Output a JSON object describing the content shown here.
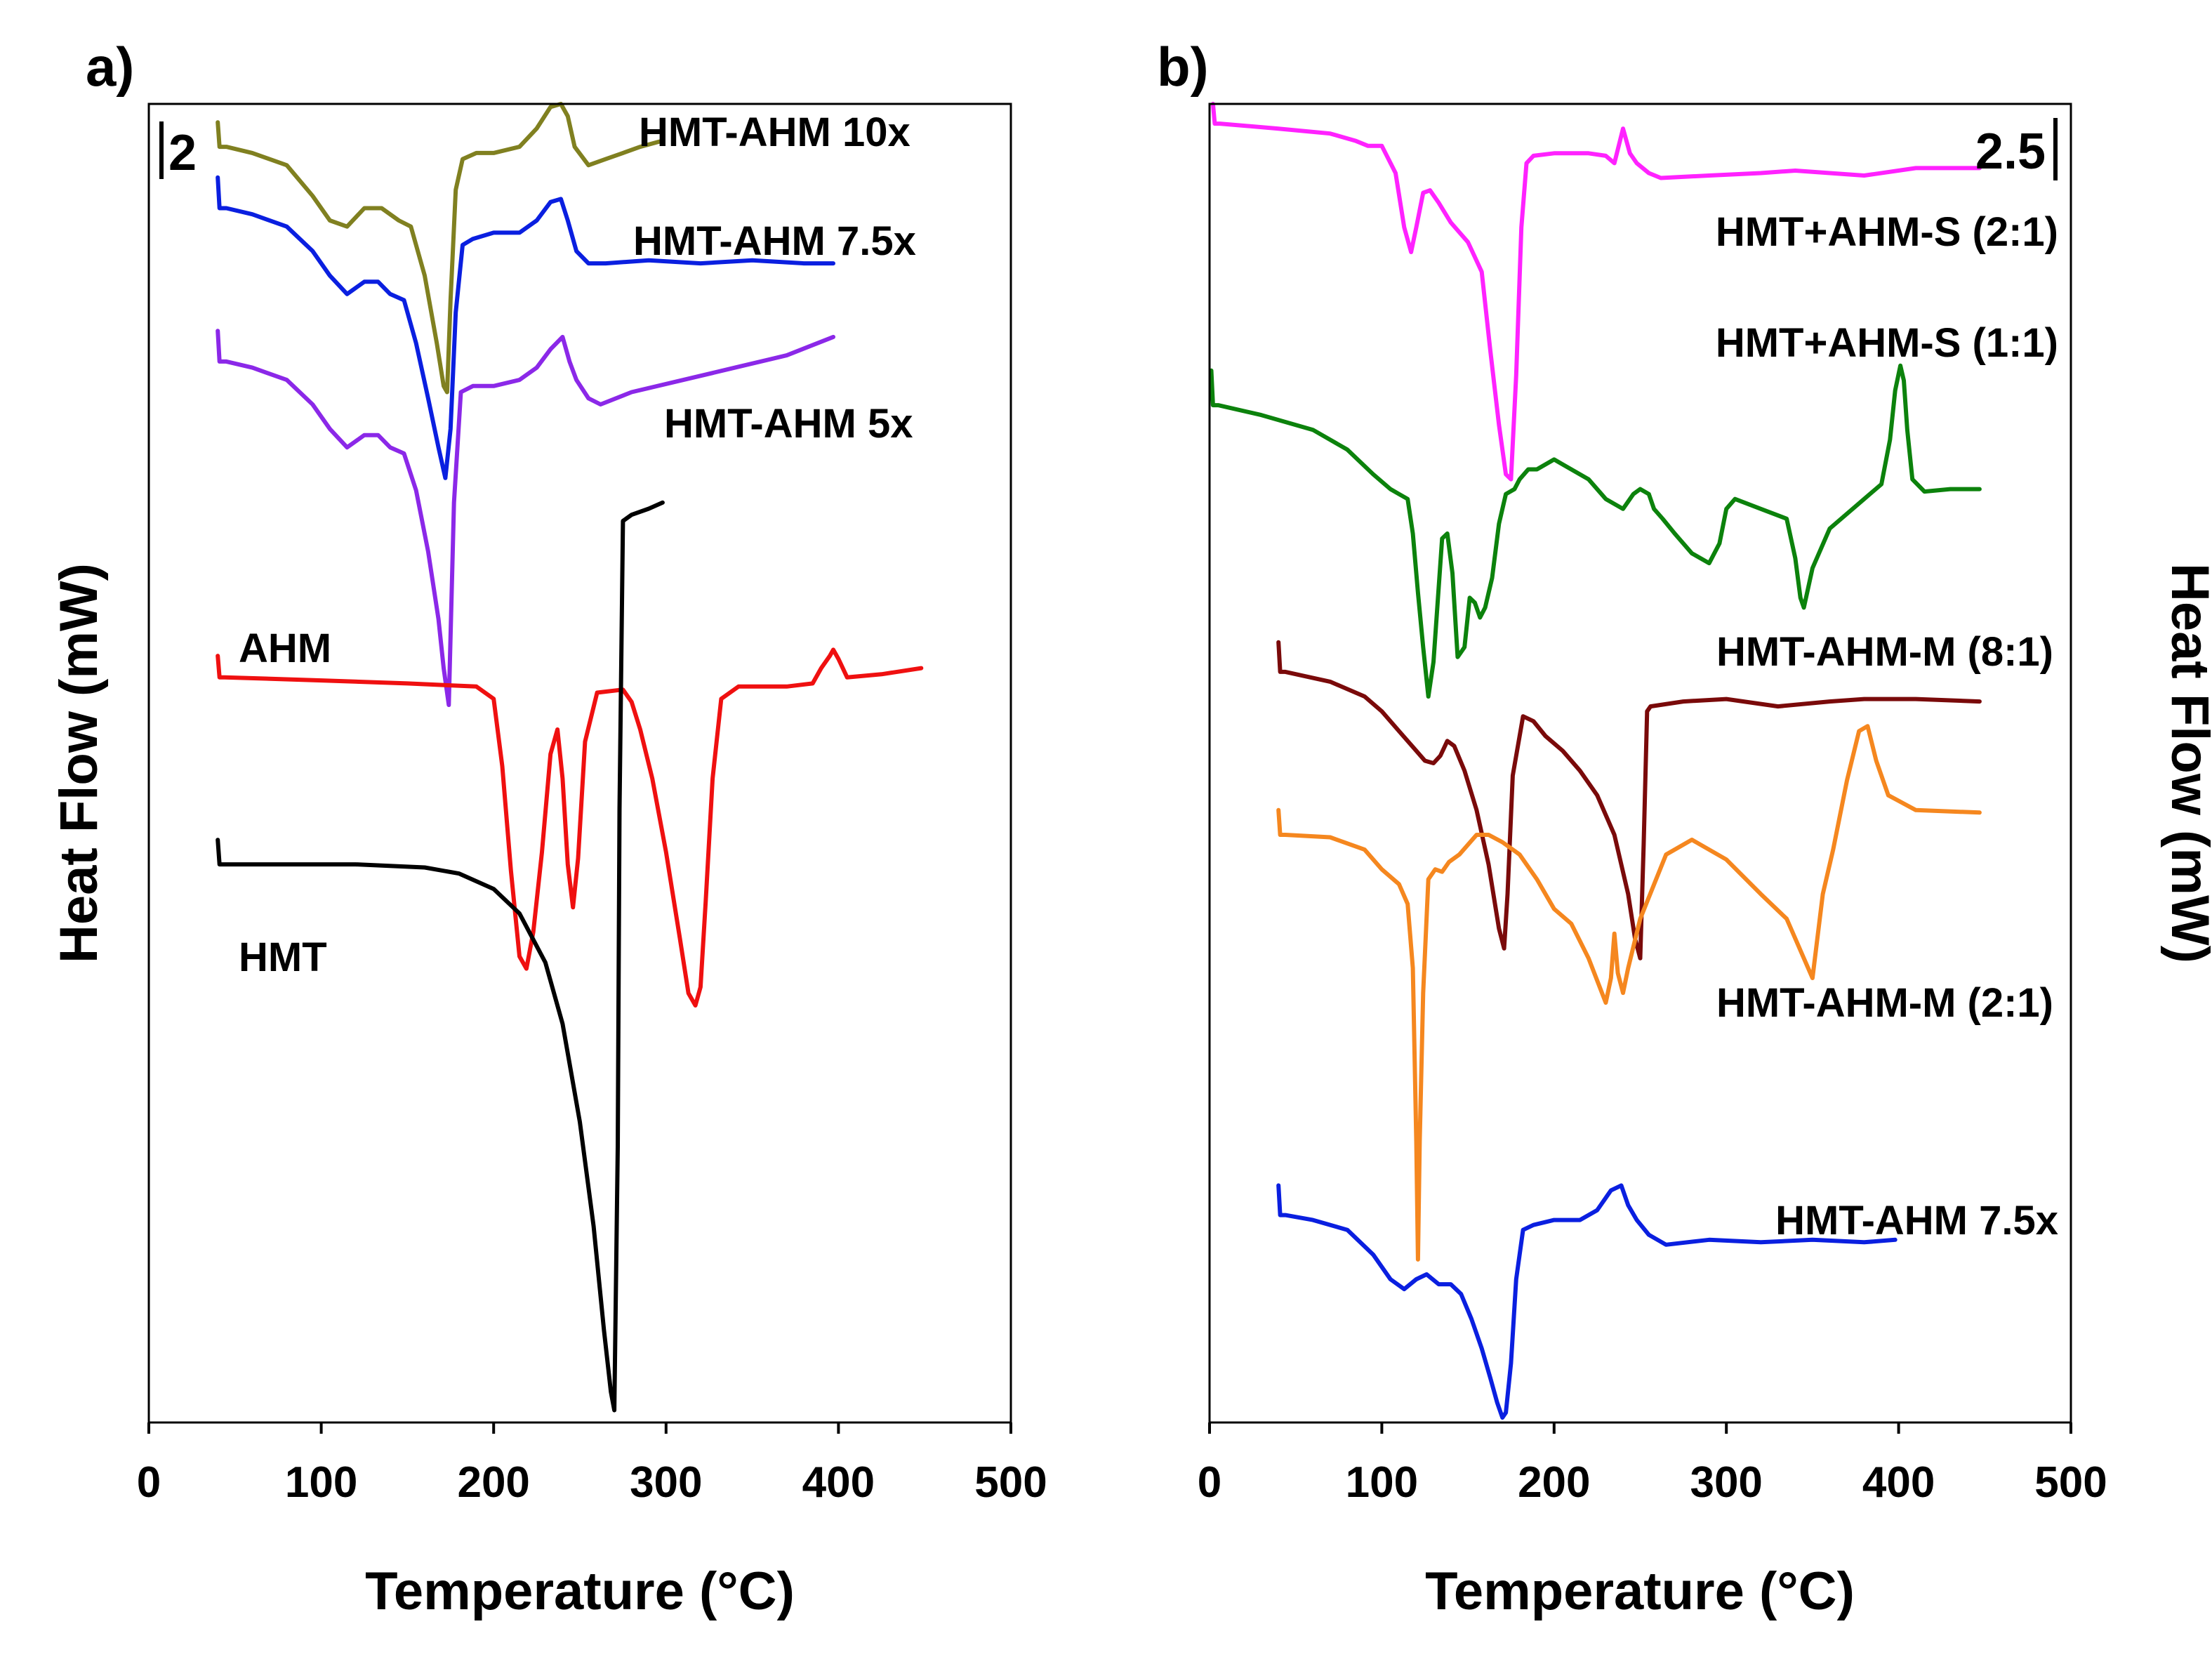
{
  "chart_data": [
    {
      "id": "a",
      "type": "line",
      "panel_label": "a)",
      "title": "",
      "xlabel": "Temperature (°C)",
      "ylabel": "Heat Flow (mW)",
      "xlim": [
        0,
        500
      ],
      "xticks": [
        0,
        100,
        200,
        300,
        400,
        500
      ],
      "ylim": [
        -21.5,
        0
      ],
      "y_units": "arbitrary stacked offset (mW)",
      "scale_bar": {
        "label": "2",
        "value": 2
      },
      "grid": false,
      "legend": "none (labels next to curves)",
      "series": [
        {
          "name": "HMT-AHM 10x",
          "color": "#808020",
          "x": [
            40,
            41,
            45,
            60,
            80,
            95,
            105,
            115,
            125,
            135,
            145,
            152,
            160,
            167,
            171,
            173,
            175,
            178,
            182,
            190,
            200,
            215,
            225,
            233,
            239,
            243,
            247,
            255,
            265,
            275,
            285,
            298
          ],
          "y": [
            -0.3,
            -0.7,
            -0.7,
            -0.8,
            -1.0,
            -1.5,
            -1.9,
            -2.0,
            -1.7,
            -1.7,
            -1.9,
            -2.0,
            -2.8,
            -3.9,
            -4.6,
            -4.7,
            -3.2,
            -1.4,
            -0.9,
            -0.8,
            -0.8,
            -0.7,
            -0.4,
            -0.05,
            0.0,
            -0.2,
            -0.7,
            -1.0,
            -0.9,
            -0.8,
            -0.7,
            -0.6
          ]
        },
        {
          "name": "HMT-AHM 7.5x",
          "color": "#0a1fe0",
          "x": [
            40,
            41,
            45,
            60,
            80,
            95,
            105,
            115,
            125,
            133,
            140,
            148,
            155,
            162,
            168,
            172,
            175,
            178,
            182,
            188,
            200,
            215,
            225,
            233,
            239,
            243,
            248,
            255,
            265,
            290,
            320,
            350,
            380,
            397
          ],
          "y": [
            -1.2,
            -1.7,
            -1.7,
            -1.8,
            -2.0,
            -2.4,
            -2.8,
            -3.1,
            -2.9,
            -2.9,
            -3.1,
            -3.2,
            -3.9,
            -4.8,
            -5.6,
            -6.1,
            -5.3,
            -3.4,
            -2.3,
            -2.2,
            -2.1,
            -2.1,
            -1.9,
            -1.6,
            -1.55,
            -1.9,
            -2.4,
            -2.6,
            -2.6,
            -2.55,
            -2.6,
            -2.55,
            -2.6,
            -2.6
          ]
        },
        {
          "name": "HMT-AHM 5x",
          "color": "#8b28e8",
          "x": [
            40,
            41,
            45,
            60,
            80,
            95,
            105,
            115,
            125,
            133,
            140,
            148,
            155,
            162,
            168,
            171,
            174,
            177,
            181,
            188,
            200,
            215,
            225,
            233,
            240,
            244,
            248,
            255,
            262,
            280,
            310,
            340,
            370,
            397
          ],
          "y": [
            -3.7,
            -4.2,
            -4.2,
            -4.3,
            -4.5,
            -4.9,
            -5.3,
            -5.6,
            -5.4,
            -5.4,
            -5.6,
            -5.7,
            -6.3,
            -7.3,
            -8.4,
            -9.2,
            -9.8,
            -6.5,
            -4.7,
            -4.6,
            -4.6,
            -4.5,
            -4.3,
            -4.0,
            -3.8,
            -4.2,
            -4.5,
            -4.8,
            -4.9,
            -4.7,
            -4.5,
            -4.3,
            -4.1,
            -3.8
          ]
        },
        {
          "name": "AHM",
          "color": "#ef1010",
          "x": [
            40,
            41,
            44,
            100,
            150,
            190,
            200,
            205,
            210,
            215,
            219,
            223,
            228,
            233,
            237,
            240,
            243,
            246,
            249,
            253,
            260,
            275,
            280,
            285,
            292,
            300,
            308,
            313,
            317,
            320,
            323,
            327,
            332,
            342,
            370,
            385,
            390,
            395,
            397,
            400,
            405,
            425,
            448
          ],
          "y": [
            -9.0,
            -9.35,
            -9.35,
            -9.4,
            -9.45,
            -9.5,
            -9.7,
            -10.8,
            -12.5,
            -13.9,
            -14.1,
            -13.5,
            -12.2,
            -10.6,
            -10.2,
            -11.0,
            -12.4,
            -13.1,
            -12.3,
            -10.4,
            -9.6,
            -9.55,
            -9.75,
            -10.2,
            -11.0,
            -12.2,
            -13.6,
            -14.5,
            -14.7,
            -14.4,
            -13.0,
            -11.0,
            -9.7,
            -9.5,
            -9.5,
            -9.45,
            -9.2,
            -9.0,
            -8.9,
            -9.05,
            -9.35,
            -9.3,
            -9.2
          ]
        },
        {
          "name": "HMT",
          "color": "#000000",
          "x": [
            40,
            41,
            44,
            80,
            120,
            160,
            180,
            200,
            215,
            230,
            240,
            250,
            258,
            264,
            268,
            270,
            272,
            273,
            275,
            280,
            290,
            298
          ],
          "y": [
            -12.0,
            -12.4,
            -12.4,
            -12.4,
            -12.4,
            -12.45,
            -12.55,
            -12.8,
            -13.2,
            -14.0,
            -15.0,
            -16.6,
            -18.3,
            -20.0,
            -21.0,
            -21.3,
            -17.0,
            -11.5,
            -6.8,
            -6.7,
            -6.6,
            -6.5
          ]
        }
      ]
    },
    {
      "id": "b",
      "type": "line",
      "panel_label": "b)",
      "title": "",
      "xlabel": "Temperature (°C)",
      "ylabel": "Heat Flow (mW)",
      "xlim": [
        0,
        500
      ],
      "xticks": [
        0,
        100,
        200,
        300,
        400,
        500
      ],
      "ylim": [
        -26.7,
        0
      ],
      "y_units": "arbitrary stacked offset (mW)",
      "scale_bar": {
        "label": "2.5",
        "value": 2.5
      },
      "grid": false,
      "legend": "none (labels next to curves)",
      "series": [
        {
          "name": "HMT+AHM-S (2:1)",
          "color": "#ff22ff",
          "x": [
            2,
            3,
            6,
            40,
            70,
            85,
            92,
            100,
            108,
            113,
            117,
            120,
            124,
            128,
            133,
            140,
            150,
            158,
            163,
            168,
            172,
            175,
            178,
            181,
            184,
            188,
            200,
            220,
            230,
            235,
            240,
            244,
            248,
            255,
            262,
            290,
            320,
            340,
            380,
            410,
            447
          ],
          "y": [
            0.0,
            -0.4,
            -0.4,
            -0.5,
            -0.6,
            -0.75,
            -0.85,
            -0.85,
            -1.4,
            -2.5,
            -3.0,
            -2.5,
            -1.8,
            -1.75,
            -2.0,
            -2.4,
            -2.8,
            -3.4,
            -5.0,
            -6.5,
            -7.5,
            -7.6,
            -5.5,
            -2.5,
            -1.2,
            -1.05,
            -1.0,
            -1.0,
            -1.05,
            -1.2,
            -0.5,
            -1.0,
            -1.2,
            -1.4,
            -1.5,
            -1.45,
            -1.4,
            -1.35,
            -1.45,
            -1.3,
            -1.3
          ]
        },
        {
          "name": "HMT+AHM-S (1:1)",
          "color": "#0c820c",
          "x": [
            1,
            2,
            5,
            30,
            60,
            80,
            95,
            105,
            110,
            115,
            118,
            121,
            124,
            127,
            130,
            135,
            138,
            141,
            144,
            148,
            151,
            154,
            157,
            160,
            164,
            168,
            172,
            177,
            180,
            185,
            190,
            200,
            205,
            210,
            220,
            230,
            240,
            246,
            250,
            255,
            258,
            263,
            270,
            280,
            290,
            296,
            300,
            305,
            320,
            335,
            340,
            343,
            345,
            350,
            360,
            380,
            390,
            395,
            398,
            401,
            403,
            405,
            408,
            415,
            430,
            447
          ],
          "y": [
            -5.4,
            -6.1,
            -6.1,
            -6.3,
            -6.6,
            -7.0,
            -7.5,
            -7.8,
            -7.9,
            -8.0,
            -8.7,
            -9.9,
            -11.0,
            -12.0,
            -11.3,
            -8.8,
            -8.7,
            -9.5,
            -11.2,
            -11.0,
            -10.0,
            -10.1,
            -10.4,
            -10.2,
            -9.6,
            -8.5,
            -7.9,
            -7.8,
            -7.6,
            -7.4,
            -7.4,
            -7.2,
            -7.3,
            -7.4,
            -7.6,
            -8.0,
            -8.2,
            -7.9,
            -7.8,
            -7.9,
            -8.2,
            -8.4,
            -8.7,
            -9.1,
            -9.3,
            -8.9,
            -8.2,
            -8.0,
            -8.2,
            -8.4,
            -9.2,
            -10.0,
            -10.2,
            -9.4,
            -8.6,
            -8.0,
            -7.7,
            -6.8,
            -5.8,
            -5.3,
            -5.6,
            -6.6,
            -7.6,
            -7.85,
            -7.8,
            -7.8
          ]
        },
        {
          "name": "HMT-AHM-M (8:1)",
          "color": "#7a0a0a",
          "x": [
            40,
            41,
            44,
            70,
            90,
            100,
            110,
            120,
            125,
            130,
            134,
            138,
            142,
            148,
            155,
            162,
            168,
            171,
            173,
            176,
            182,
            188,
            195,
            205,
            215,
            225,
            235,
            243,
            247,
            250,
            252,
            254,
            256,
            275,
            300,
            330,
            360,
            380,
            410,
            447
          ],
          "y": [
            -10.9,
            -11.5,
            -11.5,
            -11.7,
            -12.0,
            -12.3,
            -12.7,
            -13.1,
            -13.3,
            -13.35,
            -13.2,
            -12.9,
            -13.0,
            -13.5,
            -14.3,
            -15.4,
            -16.7,
            -17.1,
            -16.0,
            -13.6,
            -12.4,
            -12.5,
            -12.8,
            -13.1,
            -13.5,
            -14.0,
            -14.8,
            -16.0,
            -16.9,
            -17.3,
            -15.0,
            -12.3,
            -12.2,
            -12.1,
            -12.05,
            -12.2,
            -12.1,
            -12.05,
            -12.05,
            -12.1
          ]
        },
        {
          "name": "HMT-AHM-M (2:1)",
          "color": "#f5871f",
          "x": [
            40,
            41,
            44,
            70,
            90,
            100,
            110,
            115,
            118,
            120,
            121,
            122,
            124,
            127,
            131,
            135,
            139,
            145,
            155,
            162,
            170,
            180,
            190,
            200,
            210,
            220,
            230,
            233,
            235,
            237,
            240,
            243,
            250,
            265,
            280,
            300,
            320,
            335,
            345,
            350,
            356,
            362,
            370,
            377,
            382,
            387,
            394,
            410,
            447
          ],
          "y": [
            -14.3,
            -14.8,
            -14.8,
            -14.85,
            -15.1,
            -15.5,
            -15.8,
            -16.2,
            -17.5,
            -21.0,
            -23.4,
            -21.0,
            -18.0,
            -15.7,
            -15.5,
            -15.55,
            -15.35,
            -15.2,
            -14.8,
            -14.8,
            -14.95,
            -15.2,
            -15.7,
            -16.3,
            -16.6,
            -17.3,
            -18.2,
            -17.7,
            -16.8,
            -17.6,
            -18.0,
            -17.5,
            -16.5,
            -15.2,
            -14.9,
            -15.3,
            -16.0,
            -16.5,
            -17.3,
            -17.7,
            -16.0,
            -15.1,
            -13.7,
            -12.7,
            -12.6,
            -13.3,
            -14.0,
            -14.3,
            -14.35
          ]
        },
        {
          "name": "HMT-AHM 7.5x",
          "color": "#0a1fe0",
          "x": [
            40,
            41,
            44,
            60,
            80,
            95,
            105,
            113,
            120,
            126,
            133,
            140,
            146,
            152,
            158,
            163,
            167,
            170,
            172,
            175,
            178,
            182,
            188,
            200,
            215,
            225,
            233,
            239,
            243,
            248,
            255,
            265,
            290,
            320,
            350,
            380,
            398
          ],
          "y": [
            -21.9,
            -22.5,
            -22.5,
            -22.6,
            -22.8,
            -23.3,
            -23.8,
            -24.0,
            -23.8,
            -23.7,
            -23.9,
            -23.9,
            -24.1,
            -24.6,
            -25.2,
            -25.8,
            -26.3,
            -26.6,
            -26.5,
            -25.5,
            -23.8,
            -22.8,
            -22.7,
            -22.6,
            -22.6,
            -22.4,
            -22.0,
            -21.9,
            -22.3,
            -22.6,
            -22.9,
            -23.1,
            -23.0,
            -23.05,
            -23.0,
            -23.05,
            -23.0
          ]
        }
      ]
    }
  ],
  "curve_labels": {
    "a": [
      {
        "text": "HMT-AHM 10x",
        "series": "HMT-AHM 10x"
      },
      {
        "text": "HMT-AHM 7.5x",
        "series": "HMT-AHM 7.5x"
      },
      {
        "text": "HMT-AHM 5x",
        "series": "HMT-AHM 5x"
      },
      {
        "text": "AHM",
        "series": "AHM"
      },
      {
        "text": "HMT",
        "series": "HMT"
      }
    ],
    "b": [
      {
        "text": "HMT+AHM-S (2:1)",
        "series": "HMT+AHM-S (2:1)"
      },
      {
        "text": "HMT+AHM-S (1:1)",
        "series": "HMT+AHM-S (1:1)"
      },
      {
        "text": "HMT-AHM-M (8:1)",
        "series": "HMT-AHM-M (8:1)"
      },
      {
        "text": "HMT-AHM-M (2:1)",
        "series": "HMT-AHM-M (2:1)"
      },
      {
        "text": "HMT-AHM 7.5x",
        "series": "HMT-AHM 7.5x"
      }
    ]
  }
}
